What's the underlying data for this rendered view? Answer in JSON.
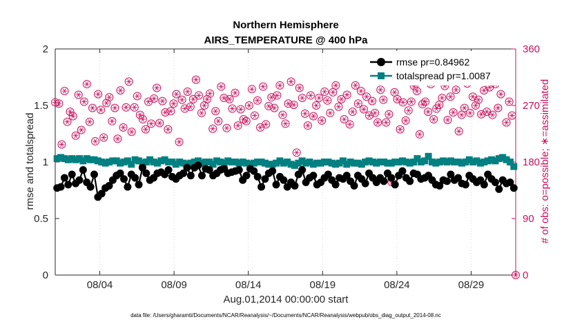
{
  "chart_data": {
    "type": "line",
    "title": "Northern Hemisphere",
    "subtitle": "AIRS_TEMPERATURE @ 400 hPa",
    "xlabel": "Aug.01,2014 00:00:00 start",
    "ylabel": "rmse and totalspread",
    "ylabel_right": "# of obs: o=possible; ∗=assimilated",
    "footnote": "data file: /Users/gharamti/Documents/NCAR/Reanalysis/~/Documents/NCAR/Reanalysis/webpub/obs_diag_output_2014-08.nc",
    "x_range_days": [
      0,
      31
    ],
    "ylim": [
      0,
      2
    ],
    "ylim_right": [
      0,
      360
    ],
    "x_tick_days": [
      3,
      8,
      13,
      18,
      23,
      28
    ],
    "x_tick_labels": [
      "08/04",
      "08/09",
      "08/14",
      "08/19",
      "08/24",
      "08/29"
    ],
    "y_ticks": [
      0,
      0.5,
      1,
      1.5,
      2
    ],
    "y_tick_labels": [
      "0",
      "0.5",
      "1",
      "1.5",
      "2"
    ],
    "y_ticks_right": [
      0,
      90,
      180,
      270,
      360
    ],
    "y_tick_labels_right": [
      "0",
      "90",
      "180",
      "270",
      "360"
    ],
    "colors": {
      "rmse": "#000000",
      "totalspread": "#008080",
      "obs": "#cc0f5c"
    },
    "series": [
      {
        "name": "rmse pr=0.84962",
        "axis": "left",
        "values": [
          0.77,
          0.78,
          0.86,
          0.8,
          0.89,
          0.81,
          0.84,
          0.93,
          0.82,
          0.78,
          0.89,
          0.69,
          0.72,
          0.77,
          0.79,
          0.84,
          0.88,
          0.9,
          0.85,
          0.78,
          0.89,
          0.86,
          0.8,
          0.95,
          0.9,
          0.84,
          0.86,
          0.9,
          0.91,
          0.89,
          0.93,
          0.87,
          0.85,
          0.88,
          0.9,
          0.95,
          0.88,
          0.95,
          0.97,
          0.88,
          0.94,
          0.93,
          0.88,
          0.9,
          0.93,
          0.94,
          0.9,
          0.91,
          0.92,
          0.93,
          0.84,
          0.88,
          0.94,
          0.92,
          0.87,
          0.78,
          0.85,
          0.9,
          0.92,
          0.8,
          0.87,
          0.84,
          0.78,
          0.82,
          0.79,
          0.89,
          0.93,
          0.82,
          0.86,
          0.88,
          0.8,
          0.82,
          0.86,
          0.89,
          0.84,
          0.8,
          0.86,
          0.85,
          0.88,
          0.83,
          0.79,
          0.88,
          0.85,
          0.81,
          0.9,
          0.86,
          0.82,
          0.86,
          0.83,
          0.9,
          0.86,
          0.8,
          0.88,
          0.92,
          0.86,
          0.83,
          0.9,
          0.89,
          0.85,
          0.86,
          0.88,
          0.84,
          0.8,
          0.79,
          0.84,
          0.83,
          0.89,
          0.84,
          0.86,
          0.81,
          0.8,
          0.88,
          0.85,
          0.82,
          0.84,
          0.8,
          0.89,
          0.85,
          0.82,
          0.76,
          0.84,
          0.81,
          0.82,
          0.77
        ]
      },
      {
        "name": "totalspread pr=1.0087",
        "axis": "left",
        "values": [
          1.03,
          1.04,
          1.03,
          1.02,
          1.03,
          1.02,
          1.03,
          1.01,
          1.03,
          1.02,
          1.02,
          1.01,
          1.0,
          0.99,
          1.0,
          1.01,
          1.01,
          0.99,
          1.0,
          1.01,
          0.98,
          1.02,
          1.01,
          0.99,
          1.0,
          1.02,
          1.0,
          0.99,
          1.01,
          1.02,
          1.0,
          1.0,
          0.98,
          1.0,
          0.99,
          0.98,
          0.99,
          1.0,
          1.01,
          0.99,
          1.0,
          1.0,
          0.98,
          1.01,
          1.0,
          0.99,
          1.01,
          1.0,
          1.0,
          0.99,
          1.0,
          0.99,
          0.98,
          0.99,
          1.0,
          1.0,
          0.99,
          0.98,
          0.98,
          0.99,
          1.01,
          0.99,
          1.0,
          0.98,
          0.97,
          0.99,
          1.01,
          0.99,
          1.0,
          0.98,
          0.99,
          0.99,
          1.0,
          1.0,
          0.99,
          0.98,
          0.99,
          1.01,
          0.98,
          1.0,
          0.99,
          0.99,
          0.98,
          1.0,
          1.01,
          1.0,
          0.99,
          1.0,
          1.0,
          0.99,
          0.99,
          1.0,
          1.0,
          1.01,
          1.0,
          0.99,
          1.0,
          1.03,
          1.0,
          1.01,
          1.05,
          1.0,
          0.99,
          1.0,
          1.01,
          1.0,
          1.01,
          1.0,
          1.0,
          0.99,
          1.0,
          1.02,
          1.0,
          1.01,
          0.99,
          1.0,
          1.01,
          1.02,
          1.01,
          1.03,
          1.04,
          1.02,
          1.0,
          0.96
        ]
      },
      {
        "name": "obs possible",
        "axis": "right",
        "values": [
          273,
          208,
          293,
          244,
          260,
          253,
          222,
          287,
          231,
          276,
          304,
          244,
          266,
          213,
          288,
          263,
          219,
          274,
          283,
          245,
          266,
          217,
          294,
          235,
          267,
          308,
          228,
          267,
          285,
          255,
          248,
          232,
          276,
          241,
          281,
          298,
          242,
          277,
          259,
          232,
          261,
          273,
          288,
          212,
          279,
          265,
          292,
          268,
          280,
          311,
          286,
          258,
          270,
          280,
          289,
          233,
          261,
          245,
          300,
          282,
          234,
          280,
          265,
          290,
          238,
          264,
          248,
          245,
          270,
          296,
          254,
          278,
          235,
          300,
          240,
          269,
          283,
          266,
          286,
          302,
          255,
          241,
          273,
          308,
          271,
          195,
          298,
          282,
          257,
          238,
          286,
          253,
          270,
          282,
          246,
          292,
          278,
          258,
          291,
          302,
          268,
          280,
          248,
          287,
          240,
          260,
          302,
          273,
          293,
          264,
          284,
          254,
          277,
          258,
          243,
          295,
          279,
          243,
          256,
          148,
          291,
          280,
          232,
          275,
          246,
          262,
          276,
          301,
          293,
          224,
          272,
          276,
          260,
          304,
          248,
          265,
          271,
          282,
          301,
          247,
          284,
          259,
          295,
          229,
          255,
          266,
          305,
          258,
          284,
          270,
          279,
          256,
          294,
          260,
          299,
          255,
          304,
          266,
          288,
          312,
          243,
          276,
          254
        ],
        "extra": [
          {
            "day": 0,
            "val": 275
          },
          {
            "day": 31,
            "val": 0
          }
        ]
      }
    ]
  }
}
